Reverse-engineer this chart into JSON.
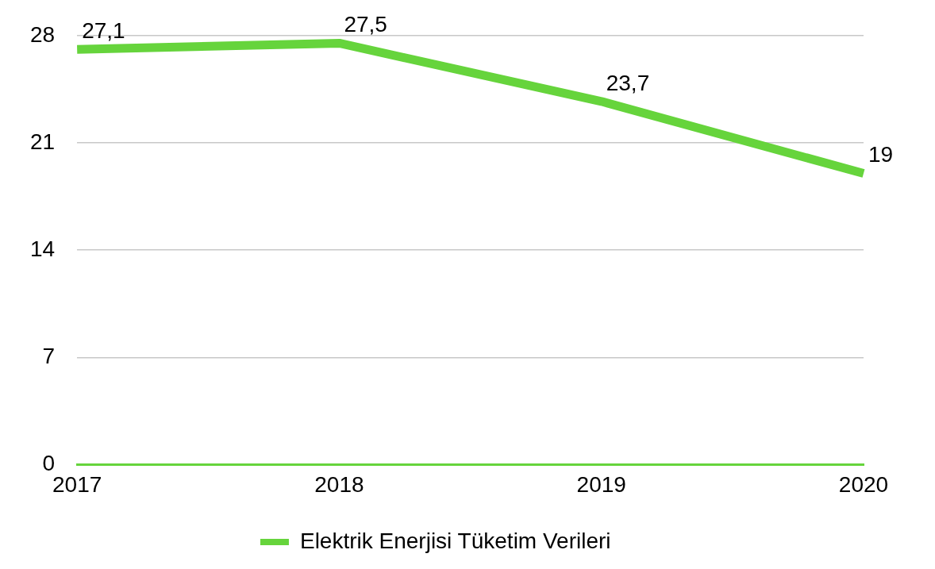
{
  "chart_data": {
    "type": "line",
    "categories": [
      "2017",
      "2018",
      "2019",
      "2020"
    ],
    "series": [
      {
        "name": "Elektrik Enerjisi Tüketim Verileri",
        "color": "#66d43c",
        "values": [
          27.1,
          27.5,
          23.7,
          19
        ],
        "value_labels": [
          "27,1",
          "27,5",
          "23,7",
          "19"
        ]
      }
    ],
    "ylim": [
      0,
      28
    ],
    "yticks": [
      0,
      7,
      14,
      21,
      28
    ],
    "grid": "y",
    "legend": "bottom",
    "marker": "none",
    "line_style": "solid"
  }
}
